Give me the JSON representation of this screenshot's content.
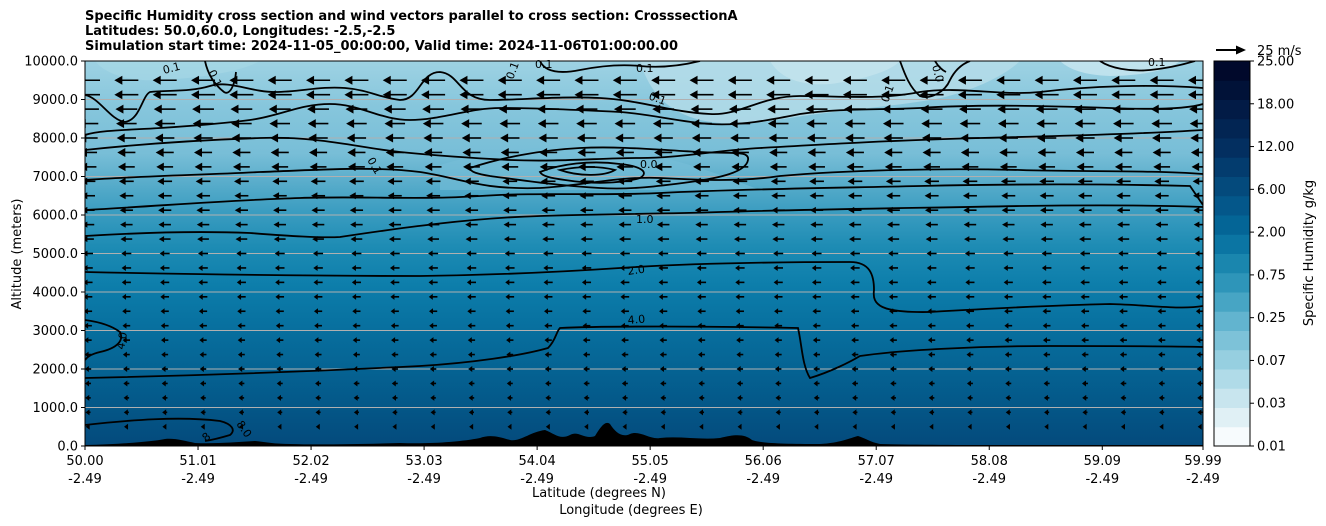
{
  "title_lines": [
    "Specific Humidity cross section and wind vectors parallel to cross section: CrosssectionA",
    "Latitudes: 50.0,60.0, Longitudes: -2.5,-2.5",
    "Simulation start time: 2024-11-05_00:00:00, Valid time: 2024-11-06T01:00:00.00"
  ],
  "chart_data": {
    "type": "heatmap",
    "subtype": "filled contour cross section with contour lines and wind vectors",
    "title": "Specific Humidity cross section and wind vectors parallel to cross section: CrosssectionA",
    "xlabel_line1": "Latitude (degrees N)",
    "xlabel_line2": "Longitude (degrees E)",
    "ylabel": "Altitude (meters)",
    "x_ticks_lat": [
      "50.00",
      "51.01",
      "52.02",
      "53.03",
      "54.04",
      "55.05",
      "56.06",
      "57.07",
      "58.08",
      "59.09",
      "59.99"
    ],
    "x_ticks_lon": [
      "-2.49",
      "-2.49",
      "-2.49",
      "-2.49",
      "-2.49",
      "-2.49",
      "-2.49",
      "-2.49",
      "-2.49",
      "-2.49",
      "-2.49"
    ],
    "y_ticks": [
      "0.0",
      "1000.0",
      "2000.0",
      "3000.0",
      "4000.0",
      "5000.0",
      "6000.0",
      "7000.0",
      "8000.0",
      "9000.0",
      "10000.0"
    ],
    "ylim": [
      0,
      10000
    ],
    "grid": "horizontal",
    "colorbar": {
      "label": "Specific Humidity g/kg",
      "tick_labels": [
        "0.01",
        "0.03",
        "0.07",
        "0.25",
        "0.75",
        "2.00",
        "6.00",
        "12.00",
        "18.00",
        "25.00"
      ],
      "colormap": [
        "#f7fbfd",
        "#e0f0f5",
        "#c8e5ee",
        "#b0dbe8",
        "#96cfe0",
        "#7dc2d8",
        "#62b4cf",
        "#47a5c4",
        "#2e95b9",
        "#1a86ae",
        "#0b75a3",
        "#046596",
        "#04578a",
        "#044a7c",
        "#033c6e",
        "#032f60",
        "#022553",
        "#021b46",
        "#011238",
        "#01092b"
      ]
    },
    "contour_labels": [
      "0.1",
      "0.1",
      "0.1",
      "0.1",
      "0.1",
      "0.0",
      "0.1",
      "0.1",
      "0.1",
      "0.1",
      "0.0",
      "1.0",
      "2.0",
      "4.0",
      "4.0",
      "8.0",
      "8"
    ],
    "quiver_key": "25 m/s",
    "wind_direction": "southward (toward decreasing latitude)"
  }
}
